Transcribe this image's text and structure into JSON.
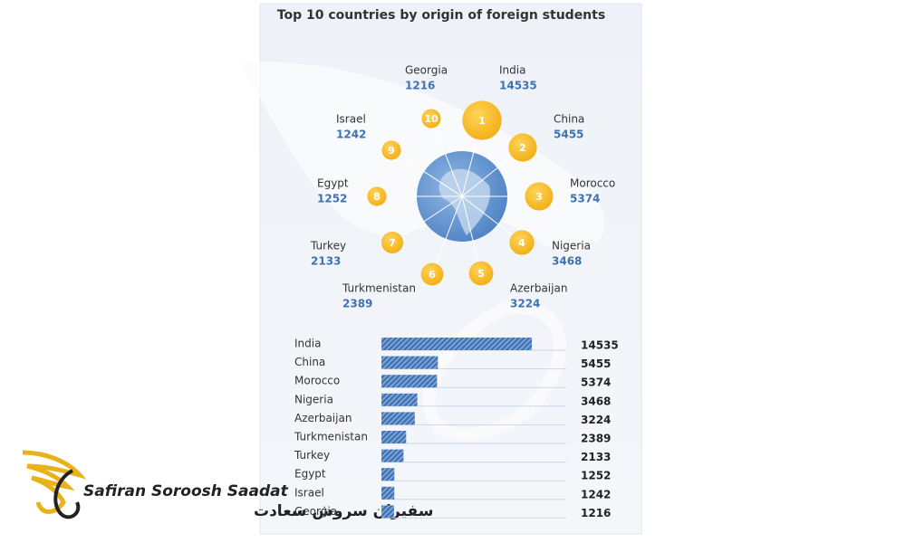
{
  "chart_data": {
    "type": "bar",
    "orientation": "horizontal",
    "title": "Top 10 countries by origin of foreign students",
    "categories": [
      "India",
      "China",
      "Morocco",
      "Nigeria",
      "Azerbaijan",
      "Turkmenistan",
      "Turkey",
      "Egypt",
      "Israel",
      "Georgia"
    ],
    "values": [
      14535,
      5455,
      5374,
      3468,
      3224,
      2389,
      2133,
      1252,
      1242,
      1216
    ],
    "ranks": [
      1,
      2,
      3,
      4,
      5,
      6,
      7,
      8,
      9,
      10
    ],
    "color": "#4a7fc1",
    "bubble_color": "#f6b81c"
  },
  "watermark": {
    "name": "Safiran Soroosh Saadat",
    "name_fa": "سفیران سروش سعادت"
  }
}
